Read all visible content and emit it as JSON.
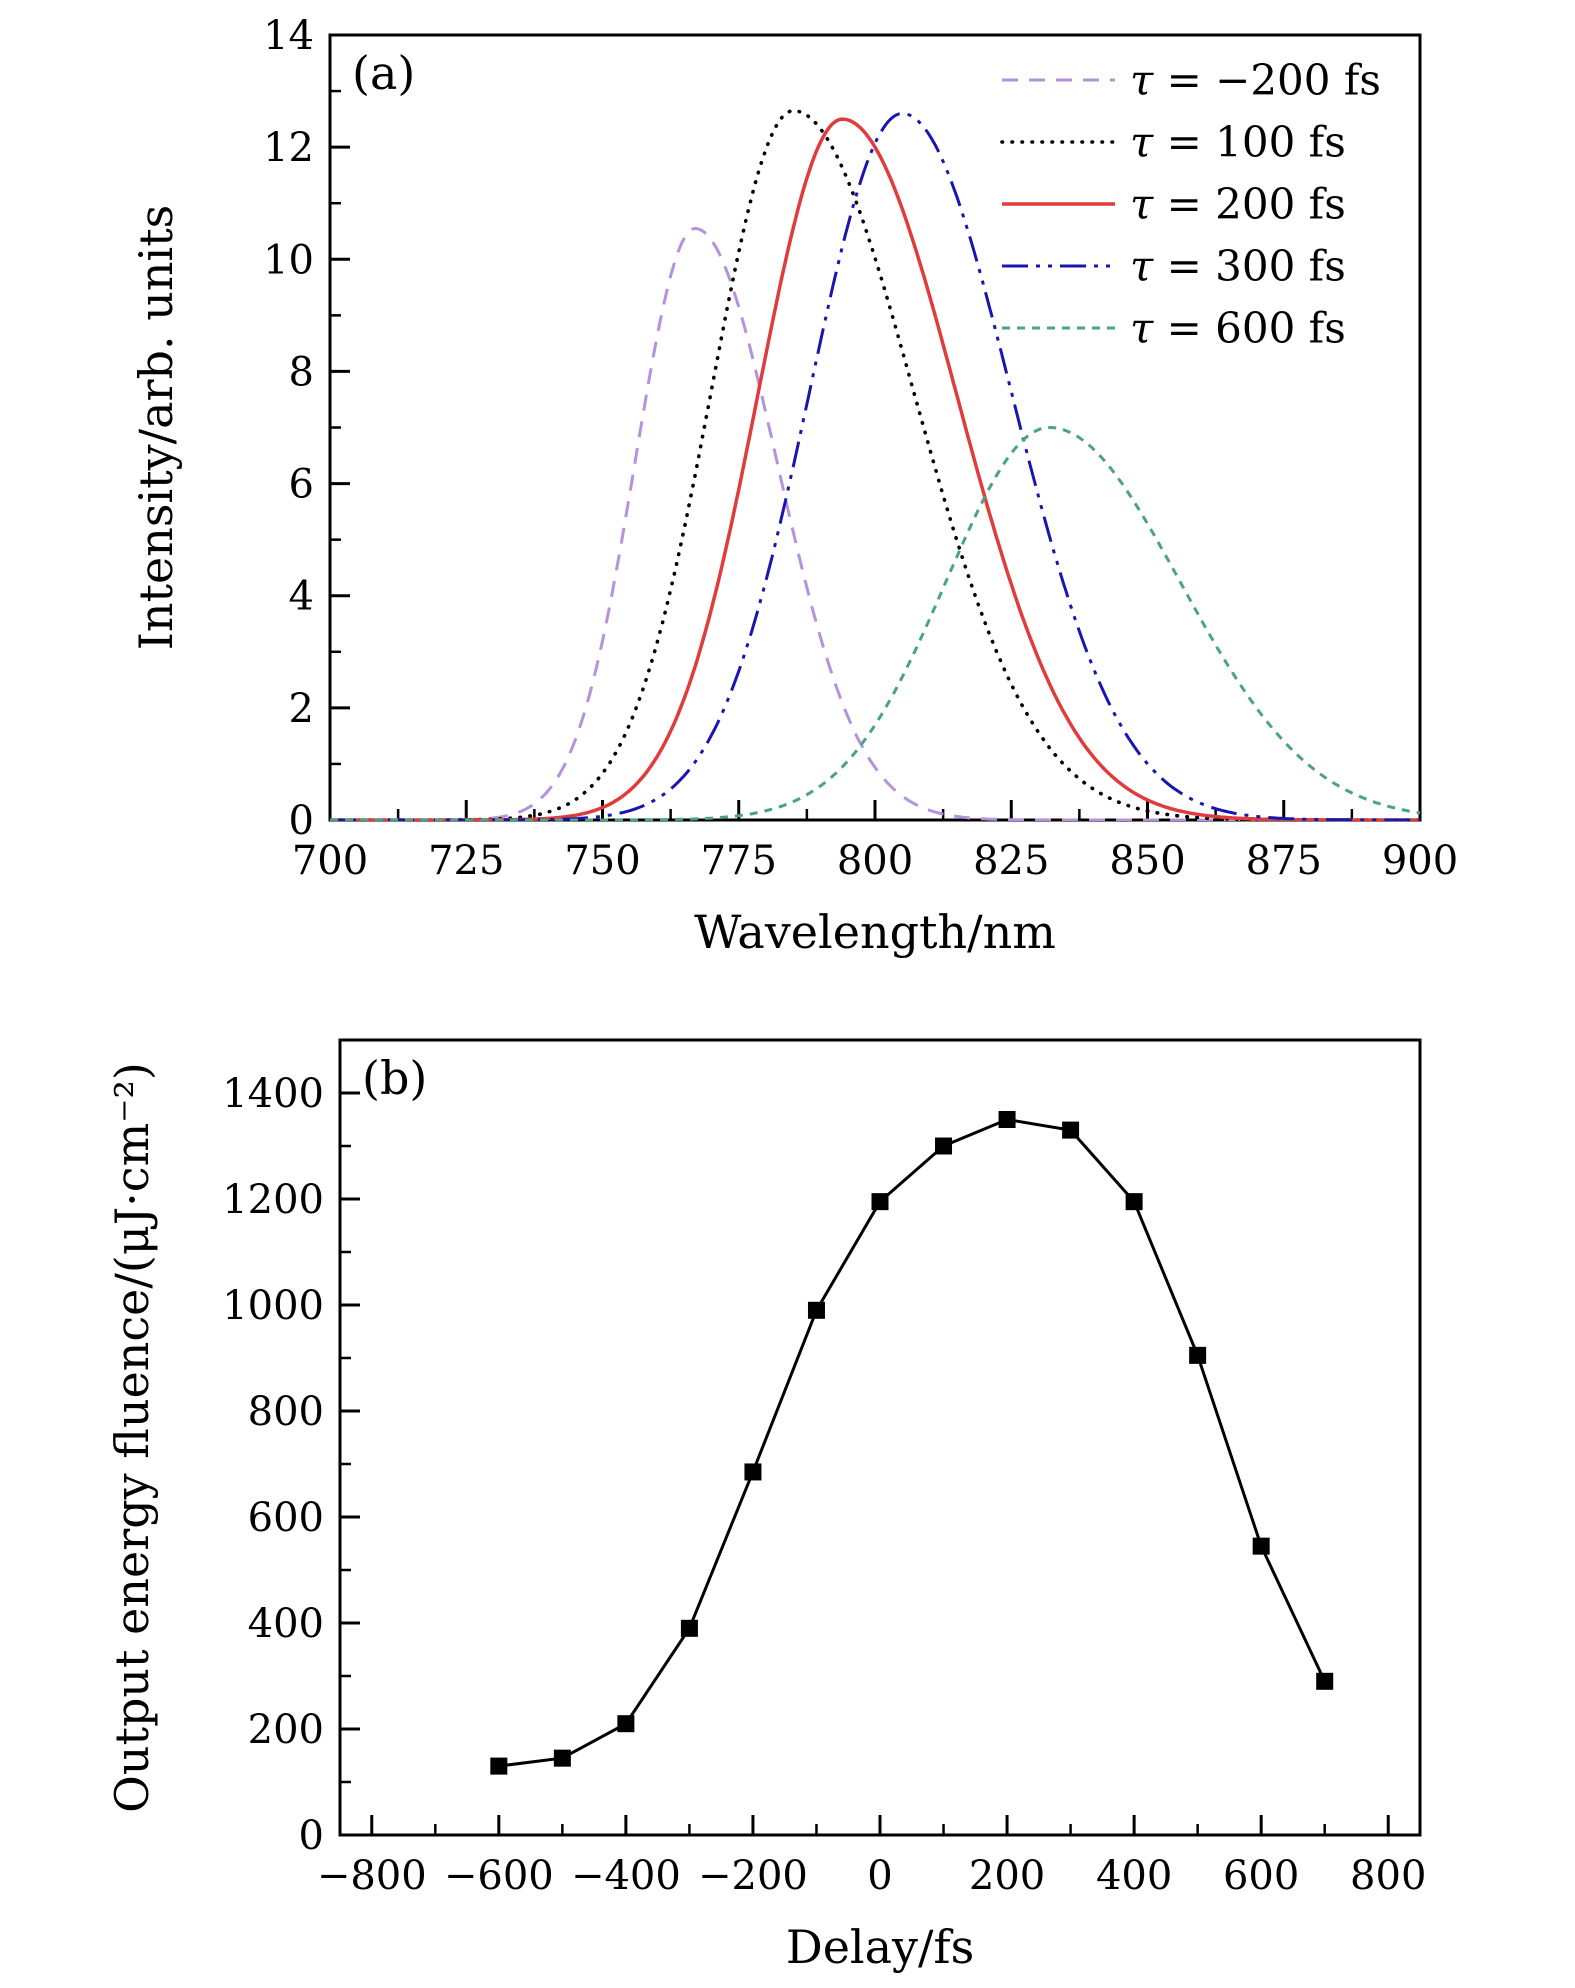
{
  "figure": {
    "background": "#ffffff"
  },
  "chart_data": [
    {
      "type": "line",
      "panel_label": "(a)",
      "title": "",
      "xlabel": "Wavelength/nm",
      "ylabel": "Intensity/arb. units",
      "xlim": [
        700,
        900
      ],
      "ylim": [
        0,
        14
      ],
      "xticks": [
        700,
        725,
        750,
        775,
        800,
        825,
        850,
        875,
        900
      ],
      "yticks": [
        0,
        2,
        4,
        6,
        8,
        10,
        12,
        14
      ],
      "x_minor_ticks": [
        712.5,
        737.5,
        762.5,
        787.5,
        812.5,
        837.5,
        862.5,
        887.5
      ],
      "y_minor_ticks": [
        1,
        3,
        5,
        7,
        9,
        11,
        13
      ],
      "grid": false,
      "legend_position": "top-right",
      "series": [
        {
          "name": "τ = −200 fs",
          "color": "#b792dc",
          "line_style": "dashed",
          "center": 767,
          "amplitude": 10.55,
          "sigma_left": 11,
          "sigma_right": 15
        },
        {
          "name": "τ = 100 fs",
          "color": "#000000",
          "line_style": "dotted",
          "center": 785,
          "amplitude": 12.65,
          "sigma_left": 15,
          "sigma_right": 22
        },
        {
          "name": "τ = 200 fs",
          "color": "#e03c3c",
          "line_style": "solid",
          "center": 794,
          "amplitude": 12.5,
          "sigma_left": 15.5,
          "sigma_right": 21
        },
        {
          "name": "τ = 300 fs",
          "color": "#1717b0",
          "line_style": "dash-dot-dot",
          "center": 805,
          "amplitude": 12.6,
          "sigma_left": 17,
          "sigma_right": 20
        },
        {
          "name": "τ = 600 fs",
          "color": "#4ba285",
          "line_style": "short-dash",
          "center": 832,
          "amplitude": 7.0,
          "sigma_left": 19,
          "sigma_right": 24
        }
      ]
    },
    {
      "type": "scatter",
      "panel_label": "(b)",
      "title": "",
      "xlabel": "Delay/fs",
      "ylabel": "Output energy fluence/(μJ·cm⁻²)",
      "xlim": [
        -850,
        850
      ],
      "ylim": [
        0,
        1500
      ],
      "xticks": [
        -800,
        -600,
        -400,
        -200,
        0,
        200,
        400,
        600,
        800
      ],
      "yticks": [
        0,
        200,
        400,
        600,
        800,
        1000,
        1200,
        1400
      ],
      "x_minor_ticks": [
        -700,
        -500,
        -300,
        -100,
        100,
        300,
        500,
        700
      ],
      "y_minor_ticks": [
        100,
        300,
        500,
        700,
        900,
        1100,
        1300
      ],
      "grid": false,
      "marker": "square",
      "line_color": "#000000",
      "x": [
        -600,
        -500,
        -400,
        -300,
        -200,
        -100,
        0,
        100,
        200,
        300,
        400,
        500,
        600,
        700
      ],
      "y": [
        130,
        145,
        210,
        390,
        685,
        990,
        1195,
        1300,
        1350,
        1330,
        1195,
        905,
        545,
        290
      ]
    }
  ]
}
